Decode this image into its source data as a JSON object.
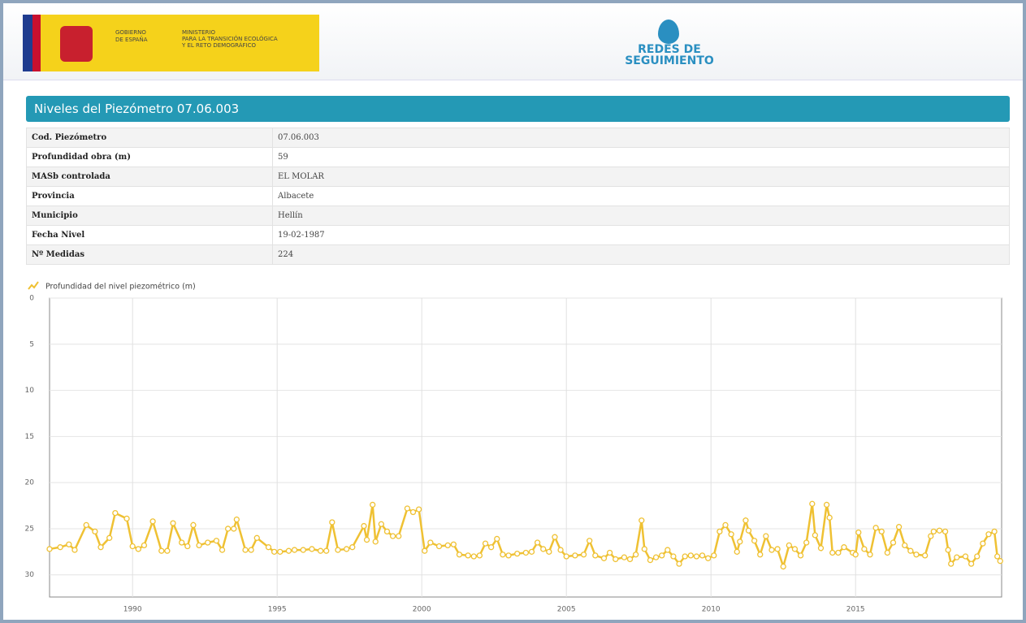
{
  "header": {
    "gov_line1": "GOBIERNO",
    "gov_line2": "DE ESPAÑA",
    "ministry_line1": "MINISTERIO",
    "ministry_line2": "PARA LA TRANSICIÓN ECOLÓGICA",
    "ministry_line3": "Y EL RETO DEMOGRÁFICO",
    "brand_line1": "REDES DE",
    "brand_line2": "SEGUIMIENTO"
  },
  "panel": {
    "title": "Niveles del Piezómetro 07.06.003"
  },
  "table": {
    "rows": [
      [
        "Cod. Piezómetro",
        "07.06.003"
      ],
      [
        "Profundidad obra (m)",
        "59"
      ],
      [
        "MASb controlada",
        "EL MOLAR"
      ],
      [
        "Provincia",
        "Albacete"
      ],
      [
        "Municipio",
        "Hellín"
      ],
      [
        "Fecha Nivel",
        "19-02-1987"
      ],
      [
        "Nº Medidas",
        "224"
      ]
    ]
  },
  "chart_data": {
    "type": "line",
    "y_inverted": true,
    "grid": true,
    "xlim": [
      1987.13,
      2020.05
    ],
    "xticks": [
      1990,
      1995,
      2000,
      2005,
      2010,
      2015
    ],
    "ylim": [
      0,
      32.4
    ],
    "yticks": [
      0,
      5,
      10,
      15,
      20,
      25,
      30
    ],
    "x": [
      1987.13,
      1987.5,
      1987.8,
      1988.0,
      1988.4,
      1988.7,
      1988.9,
      1989.2,
      1989.4,
      1989.8,
      1990.0,
      1990.2,
      1990.4,
      1990.7,
      1991.0,
      1991.2,
      1991.4,
      1991.7,
      1991.9,
      1992.1,
      1992.3,
      1992.6,
      1992.9,
      1993.1,
      1993.3,
      1993.5,
      1993.6,
      1993.9,
      1994.1,
      1994.3,
      1994.7,
      1994.9,
      1995.1,
      1995.4,
      1995.6,
      1995.9,
      1996.2,
      1996.5,
      1996.7,
      1996.9,
      1997.1,
      1997.4,
      1997.6,
      1998.0,
      1998.1,
      1998.3,
      1998.4,
      1998.6,
      1998.8,
      1999.0,
      1999.2,
      1999.5,
      1999.7,
      1999.9,
      2000.1,
      2000.3,
      2000.6,
      2000.9,
      2001.1,
      2001.3,
      2001.6,
      2001.8,
      2002.0,
      2002.2,
      2002.4,
      2002.6,
      2002.8,
      2003.0,
      2003.3,
      2003.6,
      2003.8,
      2004.0,
      2004.2,
      2004.4,
      2004.6,
      2004.8,
      2005.0,
      2005.3,
      2005.6,
      2005.8,
      2006.0,
      2006.3,
      2006.5,
      2006.7,
      2007.0,
      2007.2,
      2007.4,
      2007.6,
      2007.7,
      2007.9,
      2008.1,
      2008.3,
      2008.5,
      2008.7,
      2008.9,
      2009.1,
      2009.3,
      2009.5,
      2009.7,
      2009.9,
      2010.1,
      2010.3,
      2010.5,
      2010.7,
      2010.9,
      2011.0,
      2011.2,
      2011.3,
      2011.5,
      2011.7,
      2011.9,
      2012.1,
      2012.3,
      2012.5,
      2012.7,
      2012.9,
      2013.1,
      2013.3,
      2013.5,
      2013.6,
      2013.8,
      2014.0,
      2014.1,
      2014.2,
      2014.4,
      2014.6,
      2014.9,
      2015.0,
      2015.1,
      2015.3,
      2015.5,
      2015.7,
      2015.9,
      2016.1,
      2016.3,
      2016.5,
      2016.7,
      2016.9,
      2017.1,
      2017.4,
      2017.6,
      2017.7,
      2017.9,
      2018.1,
      2018.2,
      2018.3,
      2018.5,
      2018.8,
      2019.0,
      2019.2,
      2019.4,
      2019.6,
      2019.8,
      2019.9,
      2020.0
    ],
    "series": [
      {
        "name": "Profundidad del nivel piezométrico (m)",
        "color": "#efc133",
        "values": [
          27.2,
          27.0,
          26.7,
          27.3,
          24.6,
          25.3,
          27.0,
          26.0,
          23.3,
          23.9,
          26.9,
          27.2,
          26.8,
          24.2,
          27.4,
          27.4,
          24.4,
          26.5,
          26.9,
          24.6,
          26.8,
          26.5,
          26.3,
          27.3,
          25.0,
          25.0,
          24.0,
          27.3,
          27.3,
          26.0,
          27.0,
          27.5,
          27.5,
          27.4,
          27.3,
          27.3,
          27.2,
          27.4,
          27.4,
          24.3,
          27.3,
          27.2,
          27.0,
          24.7,
          26.2,
          22.4,
          26.4,
          24.5,
          25.3,
          25.8,
          25.8,
          22.8,
          23.2,
          22.9,
          27.4,
          26.5,
          26.9,
          26.8,
          26.7,
          27.8,
          27.9,
          28.0,
          27.9,
          26.6,
          27.0,
          26.1,
          27.8,
          27.9,
          27.7,
          27.6,
          27.5,
          26.5,
          27.2,
          27.5,
          25.9,
          27.3,
          28.0,
          27.9,
          27.8,
          26.3,
          27.9,
          28.2,
          27.6,
          28.3,
          28.1,
          28.3,
          27.8,
          24.1,
          27.2,
          28.4,
          28.1,
          27.9,
          27.3,
          28.0,
          28.8,
          28.0,
          27.9,
          28.0,
          27.9,
          28.2,
          27.9,
          25.3,
          24.6,
          25.6,
          27.5,
          26.4,
          24.1,
          25.2,
          26.3,
          27.8,
          25.8,
          27.3,
          27.2,
          29.1,
          26.8,
          27.2,
          27.9,
          26.5,
          22.3,
          25.7,
          27.1,
          22.4,
          23.8,
          27.6,
          27.6,
          27.0,
          27.6,
          27.8,
          25.4,
          27.2,
          27.8,
          24.9,
          25.3,
          27.6,
          26.5,
          24.8,
          26.8,
          27.4,
          27.8,
          27.9,
          25.8,
          25.3,
          25.2,
          25.3,
          27.3,
          28.8,
          28.1,
          28.0,
          28.8,
          28.0,
          26.6,
          25.6,
          25.3,
          28.0,
          28.5
        ]
      }
    ]
  }
}
